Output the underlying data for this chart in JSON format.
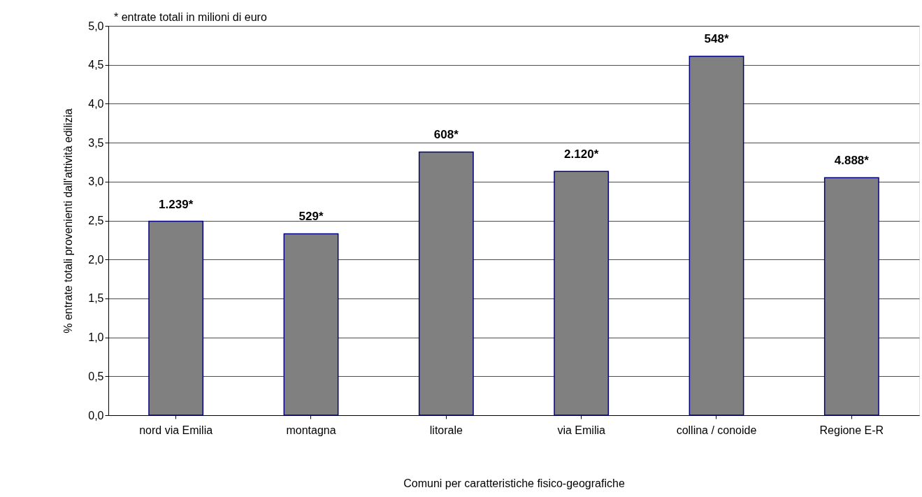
{
  "chart_data": {
    "type": "bar",
    "categories": [
      "nord via Emilia",
      "montagna",
      "litorale",
      "via Emilia",
      "collina / conoide",
      "Regione E-R"
    ],
    "values": [
      2.49,
      2.33,
      3.38,
      3.13,
      4.61,
      3.05
    ],
    "color": "#808080",
    "xlabel": "Comuni per caratteristiche fisico-geografiche",
    "ylabel": "% entrate totali provenienti dall'attività edilizia",
    "annotations": [
      "* entrate totali in milioni di euro",
      {
        "text": "1.239*",
        "x": "nord via Emilia",
        "y": 2.49
      },
      {
        "text": "529*",
        "x": "montagna",
        "y": 2.33
      },
      {
        "text": "608*",
        "x": "litorale",
        "y": 3.38
      },
      {
        "text": "2.120*",
        "x": "via Emilia",
        "y": 3.13
      },
      {
        "text": "548*",
        "x": "collina / conoide",
        "y": 4.61
      },
      {
        "text": "4.888*",
        "x": "Regione E-R",
        "y": 3.05
      }
    ],
    "ylim": [
      0,
      5
    ],
    "yticks": [
      {
        "value": 0,
        "label": "0,0"
      },
      {
        "value": 0.5,
        "label": "0,5"
      },
      {
        "value": 1,
        "label": "1,0"
      },
      {
        "value": 1.5,
        "label": "1,5"
      },
      {
        "value": 2,
        "label": "2,0"
      },
      {
        "value": 2.5,
        "label": "2,5"
      },
      {
        "value": 3,
        "label": "3,0"
      },
      {
        "value": 3.5,
        "label": "3,5"
      },
      {
        "value": 4,
        "label": "4,0"
      },
      {
        "value": 4.5,
        "label": "4,5"
      },
      {
        "value": 5,
        "label": "5,0"
      }
    ],
    "grid": "y"
  }
}
